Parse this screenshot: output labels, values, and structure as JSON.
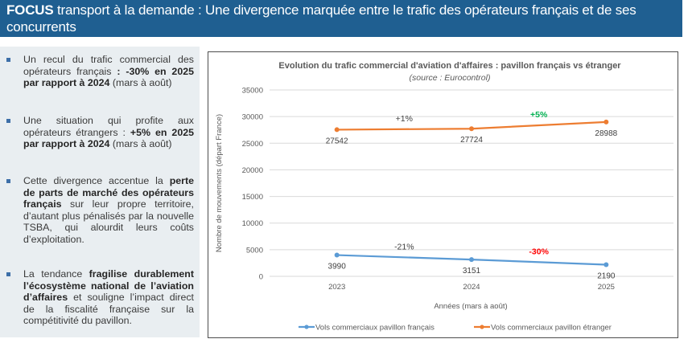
{
  "header": {
    "title_bold": "FOCUS",
    "title_rest": " transport à la demande : Une divergence marquée entre le trafic des opérateurs français et de ses concurrents"
  },
  "bullets": [
    {
      "parts": [
        {
          "t": "Un recul du trafic commercial des opérateurs français ",
          "b": false
        },
        {
          "t": ": -30% en 2025 par rapport à 2024",
          "b": true
        },
        {
          "t": " (mars à août)",
          "b": false
        }
      ]
    },
    {
      "parts": [
        {
          "t": "Une situation qui profite aux opérateurs étrangers : ",
          "b": false
        },
        {
          "t": "+5% en 2025 par rapport à 2024",
          "b": true
        },
        {
          "t": " (mars à août)",
          "b": false
        }
      ]
    },
    {
      "parts": [
        {
          "t": "Cette divergence accentue la ",
          "b": false
        },
        {
          "t": "perte de parts de marché des opérateurs français",
          "b": true
        },
        {
          "t": " sur leur propre territoire, d’autant plus pénalisés par la nouvelle TSBA, qui alourdit leurs coûts d’exploitation.",
          "b": false
        }
      ]
    },
    {
      "parts": [
        {
          "t": "La tendance ",
          "b": false
        },
        {
          "t": "fragilise durablement l’écosystème national de l’aviation d’affaires",
          "b": true
        },
        {
          "t": " et souligne l’impact direct de la fiscalité française sur la compétitivité du pavillon.",
          "b": false
        }
      ]
    }
  ],
  "chart_data": {
    "type": "line",
    "title": "Evolution du trafic commercial d'aviation d'affaires : pavillon français vs étranger",
    "subtitle": "(source : Eurocontrol)",
    "xlabel": "Années (mars à août)",
    "ylabel": "Nombre de mouvements (départ France)",
    "categories": [
      "2023",
      "2024",
      "2025"
    ],
    "ylim": [
      0,
      35000
    ],
    "yticks": [
      0,
      5000,
      10000,
      15000,
      20000,
      25000,
      30000,
      35000
    ],
    "grid": true,
    "legend_position": "bottom",
    "series": [
      {
        "name": "Vols commerciaux pavillon français",
        "color": "#5b9bd5",
        "values": [
          3990,
          3151,
          2190
        ],
        "changes": [
          {
            "label": "-21%",
            "between": [
              "2023",
              "2024"
            ],
            "color": "#404040"
          },
          {
            "label": "-30%",
            "between": [
              "2024",
              "2025"
            ],
            "color": "#ff0000"
          }
        ]
      },
      {
        "name": "Vols commerciaux pavillon étranger",
        "color": "#ed7d31",
        "values": [
          27542,
          27724,
          28988
        ],
        "changes": [
          {
            "label": "+1%",
            "between": [
              "2023",
              "2024"
            ],
            "color": "#404040"
          },
          {
            "label": "+5%",
            "between": [
              "2024",
              "2025"
            ],
            "color": "#00b050"
          }
        ]
      }
    ]
  }
}
